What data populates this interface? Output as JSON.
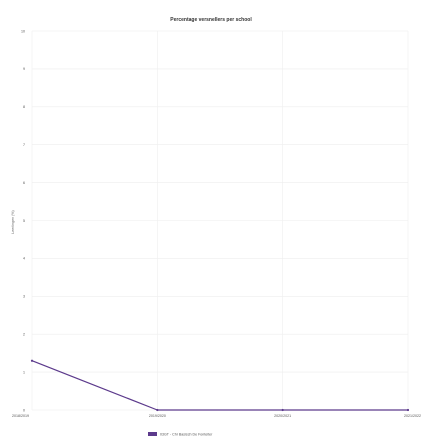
{
  "chart_data": {
    "type": "line",
    "title": "Percentage versnellers per school",
    "xlabel": "",
    "ylabel": "Leerlingen (%)",
    "categories": [
      "2018/2019",
      "2019/2020",
      "2020/2021",
      "2021/2022"
    ],
    "series": [
      {
        "name": "03GT - Chr Basisch De Fonteiter",
        "values": [
          1.3,
          0,
          0,
          0
        ]
      }
    ],
    "ylim": [
      0,
      10
    ],
    "yticks": [
      "0",
      "1",
      "2",
      "3",
      "4",
      "5",
      "6",
      "7",
      "8",
      "9",
      "10"
    ],
    "grid": true,
    "legend_position": "bottom-center",
    "colors": {
      "series": "#5c3a8c",
      "axis_text": "#555555",
      "grid": "#eeeeee"
    }
  },
  "footer": {
    "credit": ""
  }
}
